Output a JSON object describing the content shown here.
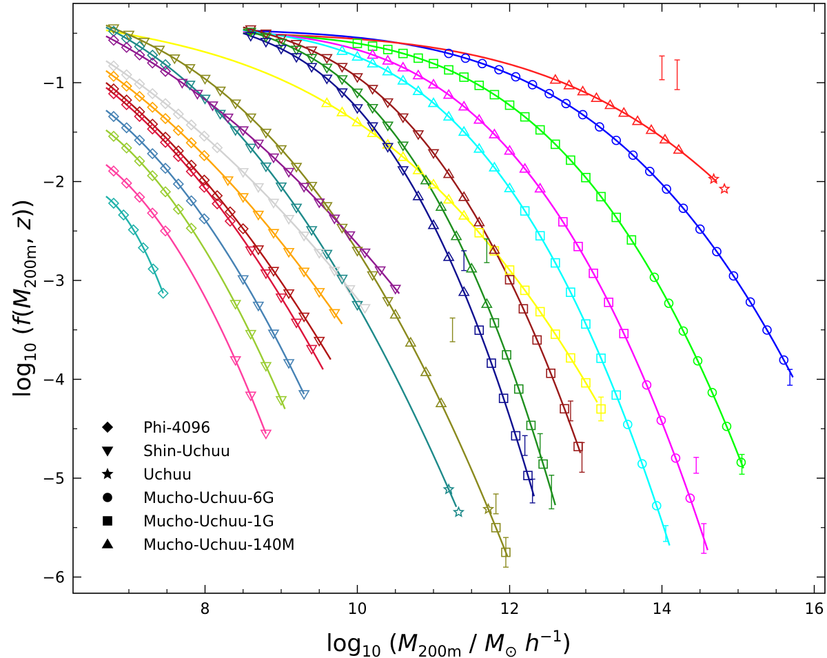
{
  "chart_data": {
    "type": "scatter",
    "xlabel": "log10(M200m / M⊙ h⁻¹)",
    "ylabel": "log10(f(M200m, z))",
    "xlabel_parts": {
      "pre": "log",
      "sub1": "10",
      "open": " (",
      "M": "M",
      "sub2": "200m",
      "mid": " / ",
      "Msun": "M",
      "sun": "⊙",
      "h": " h",
      "exp": "−1",
      "close": ")"
    },
    "ylabel_parts": {
      "pre": "log",
      "sub1": "10",
      "open": " (",
      "f": "f",
      "paren": "(",
      "M": "M",
      "sub2": "200m",
      "comma": ", ",
      "z": "z",
      "close": "))"
    },
    "xlim": [
      6.2,
      16.4
    ],
    "ylim": [
      -6.2,
      -0.15
    ],
    "xticks": [
      8,
      10,
      12,
      14,
      16
    ],
    "yticks": [
      -1,
      -2,
      -3,
      -4,
      -5,
      -6
    ],
    "xtick_labels": [
      "8",
      "10",
      "12",
      "14",
      "16"
    ],
    "ytick_labels": [
      "−1",
      "−2",
      "−3",
      "−4",
      "−5",
      "−6"
    ],
    "legend": {
      "placement": "bottom-left",
      "entries": [
        {
          "marker": "diamond",
          "label": "Phi-4096"
        },
        {
          "marker": "triangle-down",
          "label": "Shin-Uchuu"
        },
        {
          "marker": "star",
          "label": "Uchuu"
        },
        {
          "marker": "circle",
          "label": "Mucho-Uchuu-6G"
        },
        {
          "marker": "square",
          "label": "Mucho-Uchuu-1G"
        },
        {
          "marker": "triangle-up",
          "label": "Mucho-Uchuu-140M"
        }
      ]
    },
    "series": [
      {
        "name": "blue",
        "color": "#0000ff",
        "plateau": -0.47,
        "slope": -0.035,
        "xcut": 15.7,
        "ycut": -3.95,
        "p": 3.2,
        "curve": [
          8.5,
          15.72
        ],
        "markers": [
          {
            "type": "circle",
            "start": 11.2,
            "end": 15.65,
            "step": 0.22,
            "errors": [
              {
                "x": 15.68,
                "y": -3.98,
                "e": 0.08
              }
            ]
          }
        ]
      },
      {
        "name": "red",
        "color": "#ff2020",
        "plateau": -0.5,
        "slope": -0.03,
        "xcut": 14.8,
        "ycut": -2.06,
        "p": 3.2,
        "curve": [
          8.5,
          14.72
        ],
        "markers": [
          {
            "type": "triangle-up",
            "start": 12.6,
            "end": 14.3,
            "step": 0.18,
            "errors": [
              {
                "x": 14.0,
                "y": -0.85,
                "e": 0.12
              },
              {
                "x": 14.2,
                "y": -0.92,
                "e": 0.15
              }
            ]
          },
          {
            "type": "star",
            "start": 14.68,
            "end": 14.82,
            "step": 0.14
          }
        ]
      },
      {
        "name": "green",
        "color": "#00ff00",
        "plateau": -0.5,
        "slope": -0.04,
        "xcut": 15.05,
        "ycut": -4.86,
        "p": 3.1,
        "curve": [
          8.5,
          15.07
        ],
        "markers": [
          {
            "type": "square",
            "start": 10.0,
            "end": 13.7,
            "step": 0.2
          },
          {
            "type": "circle",
            "start": 13.9,
            "end": 15.05,
            "step": 0.19,
            "errors": [
              {
                "x": 15.05,
                "y": -4.86,
                "e": 0.1
              }
            ]
          }
        ]
      },
      {
        "name": "magenta",
        "color": "#ff00ff",
        "plateau": -0.48,
        "slope": -0.07,
        "xcut": 14.55,
        "ycut": -5.61,
        "p": 2.9,
        "curve": [
          8.5,
          14.6
        ],
        "markers": [
          {
            "type": "triangle-up",
            "start": 10.2,
            "end": 12.5,
            "step": 0.2
          },
          {
            "type": "square",
            "start": 12.7,
            "end": 13.6,
            "step": 0.2
          },
          {
            "type": "circle",
            "start": 13.8,
            "end": 14.55,
            "step": 0.19,
            "errors": [
              {
                "x": 14.45,
                "y": -4.87,
                "e": 0.08
              },
              {
                "x": 14.55,
                "y": -5.61,
                "e": 0.15
              }
            ]
          }
        ]
      },
      {
        "name": "cyan",
        "color": "#00ffff",
        "plateau": -0.47,
        "slope": -0.1,
        "xcut": 14.05,
        "ycut": -5.56,
        "p": 2.8,
        "curve": [
          8.5,
          14.1
        ],
        "markers": [
          {
            "type": "triangle-up",
            "start": 9.8,
            "end": 12.0,
            "step": 0.2
          },
          {
            "type": "square",
            "start": 12.2,
            "end": 13.4,
            "step": 0.2
          },
          {
            "type": "circle",
            "start": 13.55,
            "end": 14.05,
            "step": 0.19,
            "errors": [
              {
                "x": 14.05,
                "y": -5.56,
                "e": 0.08
              }
            ]
          }
        ]
      },
      {
        "name": "yellow",
        "color": "#ffff00",
        "plateau": -0.47,
        "slope": -0.14,
        "xcut": 13.2,
        "ycut": -4.3,
        "p": 2.7,
        "curve": [
          6.7,
          13.15
        ],
        "markers": [
          {
            "type": "triangle-up",
            "start": 9.6,
            "end": 11.4,
            "step": 0.2
          },
          {
            "type": "square",
            "start": 11.6,
            "end": 13.2,
            "step": 0.2,
            "errors": [
              {
                "x": 13.2,
                "y": -4.3,
                "e": 0.12
              }
            ]
          }
        ]
      },
      {
        "name": "brown",
        "color": "#9a1a1a",
        "plateau": -0.44,
        "slope": -0.2,
        "xcut": 12.95,
        "ycut": -4.79,
        "p": 2.6,
        "curve": [
          8.5,
          12.93
        ],
        "markers": [
          {
            "type": "triangle-down",
            "start": 8.6,
            "end": 11.0,
            "step": 0.2
          },
          {
            "type": "triangle-up",
            "start": 11.2,
            "end": 11.8,
            "step": 0.2
          },
          {
            "type": "square",
            "start": 12.0,
            "end": 12.95,
            "step": 0.18,
            "errors": [
              {
                "x": 12.8,
                "y": -4.32,
                "e": 0.1
              },
              {
                "x": 12.95,
                "y": -4.79,
                "e": 0.15
              }
            ]
          }
        ]
      },
      {
        "name": "green-dark",
        "color": "#1e8f1e",
        "plateau": -0.46,
        "slope": -0.24,
        "xcut": 12.55,
        "ycut": -5.14,
        "p": 2.6,
        "curve": [
          8.5,
          12.6
        ],
        "markers": [
          {
            "type": "triangle-down",
            "start": 8.6,
            "end": 10.7,
            "step": 0.2
          },
          {
            "type": "triangle-up",
            "start": 10.9,
            "end": 11.7,
            "step": 0.2,
            "errors": [
              {
                "x": 11.7,
                "y": -2.7,
                "e": 0.12
              }
            ]
          },
          {
            "type": "square",
            "start": 11.8,
            "end": 12.55,
            "step": 0.16,
            "errors": [
              {
                "x": 12.4,
                "y": -4.67,
                "e": 0.12
              },
              {
                "x": 12.55,
                "y": -5.14,
                "e": 0.17
              }
            ]
          }
        ]
      },
      {
        "name": "navy",
        "color": "#101090",
        "plateau": -0.5,
        "slope": -0.27,
        "xcut": 12.3,
        "ycut": -5.13,
        "p": 2.5,
        "curve": [
          8.5,
          12.32
        ],
        "markers": [
          {
            "type": "triangle-down",
            "start": 8.6,
            "end": 10.6,
            "step": 0.2
          },
          {
            "type": "triangle-up",
            "start": 10.8,
            "end": 11.4,
            "step": 0.2,
            "errors": [
              {
                "x": 11.4,
                "y": -2.8,
                "e": 0.1
              }
            ]
          },
          {
            "type": "square",
            "start": 11.6,
            "end": 12.3,
            "step": 0.16,
            "errors": [
              {
                "x": 12.2,
                "y": -4.67,
                "e": 0.1
              },
              {
                "x": 12.3,
                "y": -5.13,
                "e": 0.12
              }
            ]
          }
        ]
      },
      {
        "name": "olive",
        "color": "#8a8a1e",
        "plateau": -0.42,
        "slope": -0.3,
        "xcut": 11.95,
        "ycut": -5.75,
        "p": 2.3,
        "curve": [
          6.7,
          11.97
        ],
        "markers": [
          {
            "type": "triangle-down",
            "start": 6.8,
            "end": 10.4,
            "step": 0.2
          },
          {
            "type": "triangle-up",
            "start": 10.5,
            "end": 11.25,
            "step": 0.2,
            "errors": [
              {
                "x": 11.25,
                "y": -3.5,
                "e": 0.12
              }
            ]
          },
          {
            "type": "star",
            "start": 11.72,
            "end": 11.72,
            "step": 0.1
          },
          {
            "type": "square",
            "start": 11.82,
            "end": 11.95,
            "step": 0.13,
            "errors": [
              {
                "x": 11.82,
                "y": -5.26,
                "e": 0.1
              },
              {
                "x": 11.95,
                "y": -5.75,
                "e": 0.15
              }
            ]
          }
        ]
      },
      {
        "name": "teal",
        "color": "#1e8a8a",
        "plateau": -0.44,
        "slope": -0.39,
        "xcut": 11.35,
        "ycut": -5.38,
        "p": 2.1,
        "curve": [
          6.7,
          11.3
        ],
        "markers": [
          {
            "type": "diamond",
            "start": 6.8,
            "end": 7.6,
            "step": 0.17
          },
          {
            "type": "triangle-down",
            "start": 7.8,
            "end": 10.0,
            "step": 0.2
          },
          {
            "type": "star",
            "start": 11.2,
            "end": 11.33,
            "step": 0.13
          }
        ]
      },
      {
        "name": "purple",
        "color": "#901a90",
        "plateau": -0.53,
        "slope": -0.4,
        "xcut": 10.6,
        "ycut": -3.18,
        "p": 2.0,
        "curve": [
          6.7,
          10.55
        ],
        "markers": [
          {
            "type": "diamond",
            "start": 6.8,
            "end": 7.5,
            "step": 0.17
          },
          {
            "type": "triangle-down",
            "start": 7.7,
            "end": 10.6,
            "step": 0.2
          }
        ]
      },
      {
        "name": "lightgray",
        "color": "#d2d2d2",
        "plateau": -0.78,
        "slope": -0.5,
        "xcut": 10.1,
        "ycut": -3.28,
        "p": 2.0,
        "curve": [
          6.7,
          10.05
        ],
        "markers": [
          {
            "type": "diamond",
            "start": 6.8,
            "end": 8.3,
            "step": 0.17
          },
          {
            "type": "triangle-down",
            "start": 8.5,
            "end": 10.1,
            "step": 0.2
          }
        ]
      },
      {
        "name": "orange",
        "color": "#ffa500",
        "plateau": -0.88,
        "slope": -0.55,
        "xcut": 9.8,
        "ycut": -3.44,
        "p": 2.0,
        "curve": [
          6.7,
          9.8
        ],
        "markers": [
          {
            "type": "diamond",
            "start": 6.8,
            "end": 8.1,
            "step": 0.17
          },
          {
            "type": "triangle-down",
            "start": 8.3,
            "end": 9.8,
            "step": 0.2
          }
        ]
      },
      {
        "name": "crimson",
        "color": "#dc143c",
        "plateau": -1.05,
        "slope": -0.6,
        "xcut": 9.55,
        "ycut": -3.9,
        "p": 2.0,
        "curve": [
          6.7,
          9.55
        ],
        "markers": [
          {
            "type": "diamond",
            "start": 6.8,
            "end": 8.4,
            "step": 0.17
          },
          {
            "type": "triangle-down",
            "start": 8.6,
            "end": 9.55,
            "step": 0.2
          }
        ]
      },
      {
        "name": "darkred",
        "color": "#b01414",
        "plateau": -1.0,
        "slope": -0.62,
        "xcut": 9.65,
        "ycut": -3.8,
        "p": 2.0,
        "curve": [
          6.7,
          9.65
        ],
        "markers": [
          {
            "type": "diamond",
            "start": 6.8,
            "end": 8.5,
            "step": 0.17
          },
          {
            "type": "triangle-down",
            "start": 8.7,
            "end": 9.65,
            "step": 0.2
          }
        ]
      },
      {
        "name": "steelblue",
        "color": "#4682b4",
        "plateau": -1.28,
        "slope": -0.6,
        "xcut": 9.3,
        "ycut": -4.15,
        "p": 2.0,
        "curve": [
          6.7,
          9.3
        ],
        "markers": [
          {
            "type": "diamond",
            "start": 6.8,
            "end": 8.0,
            "step": 0.17
          },
          {
            "type": "triangle-down",
            "start": 8.5,
            "end": 9.3,
            "step": 0.2
          }
        ]
      },
      {
        "name": "yellowgreen",
        "color": "#9acd32",
        "plateau": -1.48,
        "slope": -0.6,
        "xcut": 9.05,
        "ycut": -4.3,
        "p": 2.0,
        "curve": [
          6.7,
          9.05
        ],
        "markers": [
          {
            "type": "diamond",
            "start": 6.8,
            "end": 7.95,
            "step": 0.17
          },
          {
            "type": "triangle-down",
            "start": 8.4,
            "end": 9.05,
            "step": 0.2
          }
        ]
      },
      {
        "name": "pink",
        "color": "#ff3fa0",
        "plateau": -1.83,
        "slope": -0.6,
        "xcut": 8.8,
        "ycut": -4.55,
        "p": 2.0,
        "curve": [
          6.7,
          8.8
        ],
        "markers": [
          {
            "type": "diamond",
            "start": 6.8,
            "end": 7.5,
            "step": 0.17
          },
          {
            "type": "triangle-down",
            "start": 8.4,
            "end": 8.8,
            "step": 0.2
          }
        ]
      },
      {
        "name": "lightseagreen",
        "color": "#20b2aa",
        "plateau": -2.15,
        "slope": -0.6,
        "xcut": 7.45,
        "ycut": -3.13,
        "p": 2.0,
        "curve": [
          6.7,
          7.45
        ],
        "markers": [
          {
            "type": "diamond",
            "start": 6.8,
            "end": 7.45,
            "step": 0.13
          }
        ]
      }
    ]
  }
}
